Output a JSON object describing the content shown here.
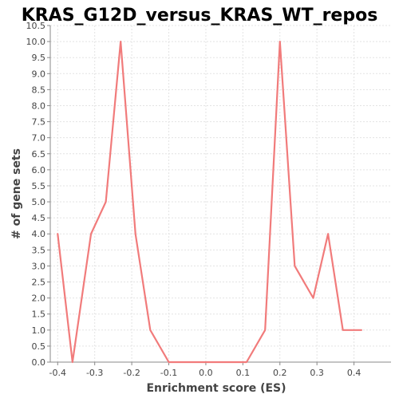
{
  "chart_data": {
    "type": "line",
    "title": "KRAS_G12D_versus_KRAS_WT_repos",
    "xlabel": "Enrichment score (ES)",
    "ylabel": "# of gene sets",
    "xlim": [
      -0.42,
      0.5
    ],
    "ylim": [
      0,
      10.5
    ],
    "xticks": [
      -0.4,
      -0.3,
      -0.2,
      -0.1,
      0.0,
      0.1,
      0.2,
      0.3,
      0.4
    ],
    "xtick_labels": [
      "-0.4",
      "-0.3",
      "-0.2",
      "-0.1",
      "0.0",
      "0.1",
      "0.2",
      "0.3",
      "0.4"
    ],
    "yticks": [
      0,
      0.5,
      1,
      1.5,
      2,
      2.5,
      3,
      3.5,
      4,
      4.5,
      5,
      5.5,
      6,
      6.5,
      7,
      7.5,
      8,
      8.5,
      9,
      9.5,
      10,
      10.5
    ],
    "ytick_labels": [
      "0.0",
      "0.5",
      "1.0",
      "1.5",
      "2.0",
      "2.5",
      "3.0",
      "3.5",
      "4.0",
      "4.5",
      "5.0",
      "5.5",
      "6.0",
      "6.5",
      "7.0",
      "7.5",
      "8.0",
      "8.5",
      "9.0",
      "9.5",
      "10.0",
      "10.5"
    ],
    "grid": true,
    "series": [
      {
        "name": "KRAS_G12D_versus_KRAS_WT_repos",
        "color": "#f17b7b",
        "x": [
          -0.4,
          -0.36,
          -0.31,
          -0.27,
          -0.23,
          -0.19,
          -0.15,
          -0.1,
          0.11,
          0.16,
          0.2,
          0.24,
          0.29,
          0.33,
          0.37,
          0.42
        ],
        "y": [
          4,
          0,
          4,
          5,
          10,
          4,
          1,
          0,
          0,
          1,
          10,
          3,
          2,
          4,
          1,
          1
        ]
      }
    ]
  }
}
